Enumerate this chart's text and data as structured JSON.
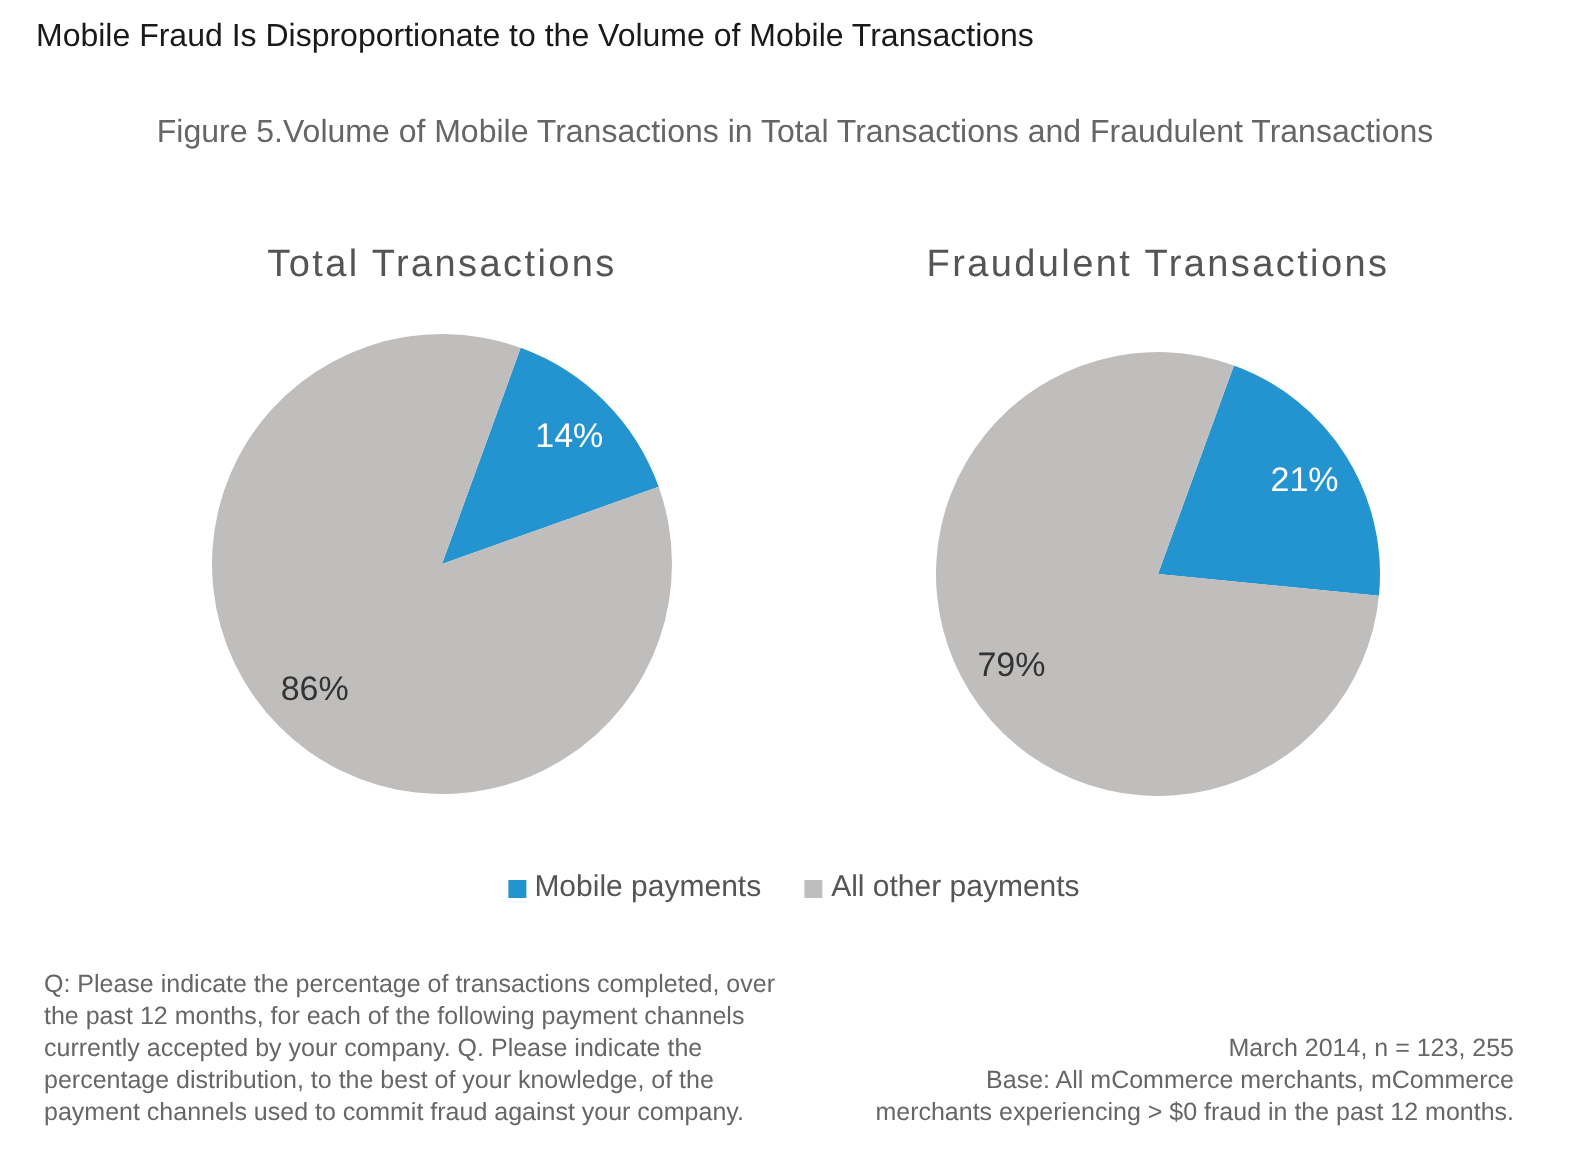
{
  "chart_data": {
    "type": "pie",
    "title": "Mobile Fraud Is Disproportionate to the Volume of Mobile Transactions",
    "subtitle": "Figure 5.Volume of Mobile Transactions in Total Transactions and Fraudulent Transactions",
    "categories": [
      "Mobile payments",
      "All other payments"
    ],
    "colors": [
      "#2394cf",
      "#bfbebd"
    ],
    "series": [
      {
        "name": "Total Transactions",
        "values": [
          14,
          86
        ],
        "value_labels": [
          "14%",
          "86%"
        ]
      },
      {
        "name": "Fraudulent Transactions",
        "values": [
          21,
          79
        ],
        "value_labels": [
          "21%",
          "79%"
        ]
      }
    ],
    "legend": "bottom",
    "annotations": [
      "Q: Please indicate the percentage of transactions completed, over the past 12 months, for each of the following payment channels currently accepted by your company. Q. Please indicate the percentage distribution, to the best of your knowledge, of the payment channels used to commit fraud against your company.",
      "March 2014, n = 123, 255",
      "Base: All mCommerce merchants, mCommerce merchants experiencing > $0 fraud in the past 12 months."
    ]
  }
}
